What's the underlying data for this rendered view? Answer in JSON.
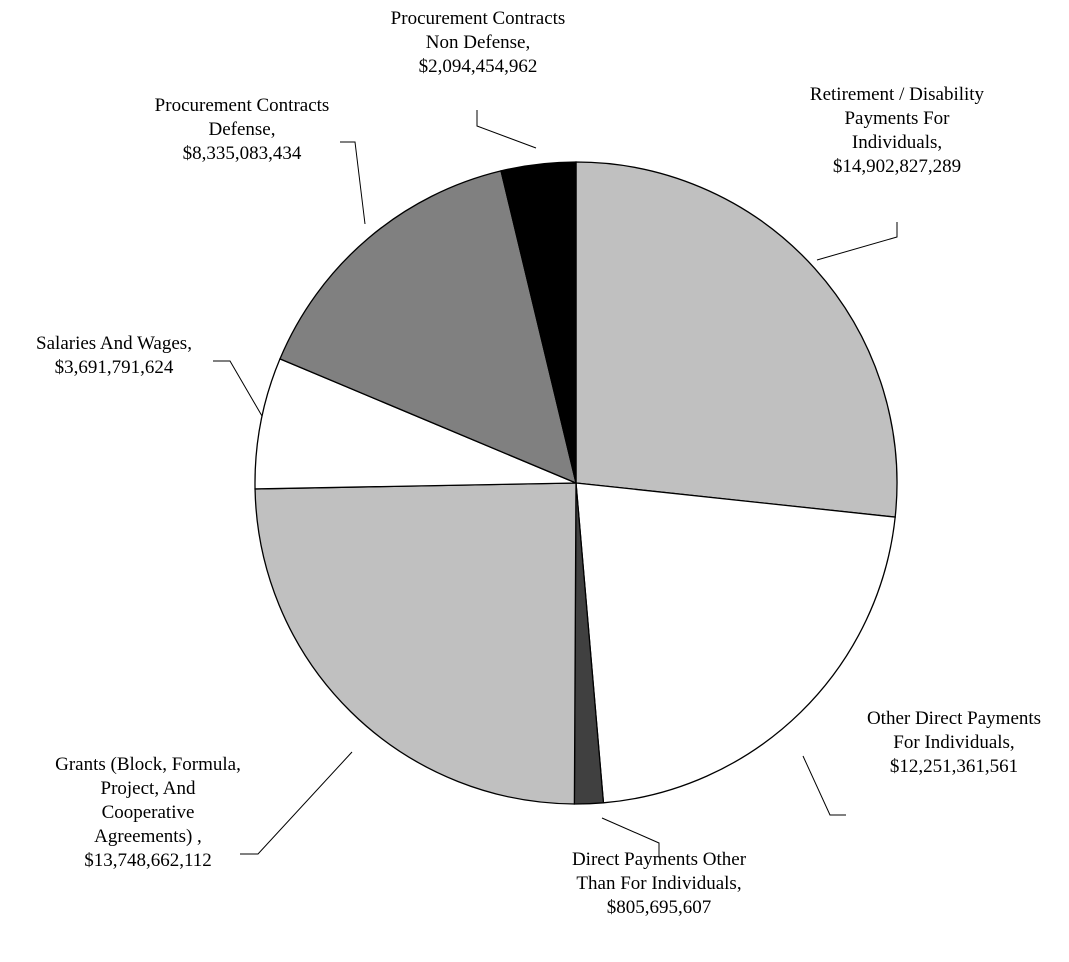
{
  "chart_data": {
    "type": "pie",
    "title": "",
    "legend": "none",
    "start_angle_deg": 0,
    "direction": "clockwise",
    "slices": [
      {
        "label_lines": [
          "Retirement / Disability",
          "Payments For",
          "Individuals,",
          "$14,902,827,289"
        ],
        "value": 14902827289,
        "color": "#c0c0c0"
      },
      {
        "label_lines": [
          "Other Direct Payments",
          "For Individuals,",
          "$12,251,361,561"
        ],
        "value": 12251361561,
        "color": "#ffffff"
      },
      {
        "label_lines": [
          "Direct Payments Other",
          "Than For Individuals,",
          "$805,695,607"
        ],
        "value": 805695607,
        "color": "#404040"
      },
      {
        "label_lines": [
          "Grants (Block, Formula,",
          "Project, And",
          "Cooperative",
          "Agreements) ,",
          "$13,748,662,112"
        ],
        "value": 13748662112,
        "color": "#c0c0c0"
      },
      {
        "label_lines": [
          "Salaries And Wages,",
          "$3,691,791,624"
        ],
        "value": 3691791624,
        "color": "#ffffff"
      },
      {
        "label_lines": [
          "Procurement Contracts",
          "Defense,",
          "$8,335,083,434"
        ],
        "value": 8335083434,
        "color": "#808080"
      },
      {
        "label_lines": [
          "Procurement Contracts",
          "Non Defense,",
          "$2,094,454,962"
        ],
        "value": 2094454962,
        "color": "#000000"
      }
    ]
  }
}
